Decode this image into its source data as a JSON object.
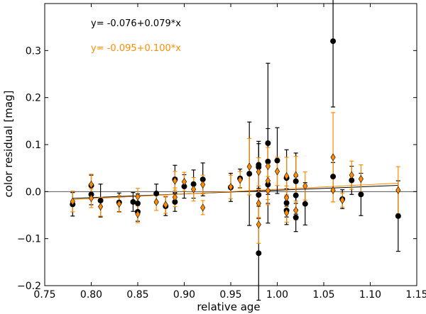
{
  "chart_data": {
    "type": "scatter",
    "xlabel": "relative age",
    "ylabel": "color residual [mag]",
    "xlim": [
      0.75,
      1.15
    ],
    "ylim": [
      -0.2,
      0.4
    ],
    "xticks": [
      "0.75",
      "0.80",
      "0.85",
      "0.90",
      "0.95",
      "1.00",
      "1.05",
      "1.10",
      "1.15"
    ],
    "yticks": [
      "−0.2",
      "−0.1",
      "0.0",
      "0.1",
      "0.2",
      "0.3"
    ],
    "ytick_values": [
      -0.2,
      -0.1,
      0.0,
      0.1,
      0.2,
      0.3
    ],
    "xtick_values": [
      0.75,
      0.8,
      0.85,
      0.9,
      0.95,
      1.0,
      1.05,
      1.1,
      1.15
    ],
    "grid": false,
    "reference_line_y": 0.0,
    "annotations": [
      {
        "text": "y= -0.076+0.079*x",
        "color": "#000000"
      },
      {
        "text": "y= -0.095+0.100*x",
        "color": "#ff8c00"
      }
    ],
    "series": [
      {
        "marker": "circle",
        "color": "#000000",
        "fit": {
          "intercept": -0.076,
          "slope": 0.079
        },
        "points": [
          {
            "x": 0.78,
            "y": -0.027,
            "err": 0.025
          },
          {
            "x": 0.8,
            "y": -0.006,
            "err": 0.022
          },
          {
            "x": 0.8,
            "y": 0.013,
            "err": 0.022
          },
          {
            "x": 0.81,
            "y": -0.019,
            "err": 0.035
          },
          {
            "x": 0.83,
            "y": -0.023,
            "err": 0.02
          },
          {
            "x": 0.845,
            "y": -0.022,
            "err": 0.02
          },
          {
            "x": 0.85,
            "y": -0.025,
            "err": 0.02
          },
          {
            "x": 0.85,
            "y": -0.043,
            "err": 0.02
          },
          {
            "x": 0.87,
            "y": -0.004,
            "err": 0.02
          },
          {
            "x": 0.88,
            "y": -0.031,
            "err": 0.02
          },
          {
            "x": 0.89,
            "y": 0.026,
            "err": 0.03
          },
          {
            "x": 0.89,
            "y": -0.022,
            "err": 0.02
          },
          {
            "x": 0.9,
            "y": 0.011,
            "err": 0.025
          },
          {
            "x": 0.91,
            "y": 0.016,
            "err": 0.03
          },
          {
            "x": 0.92,
            "y": 0.026,
            "err": 0.035
          },
          {
            "x": 0.95,
            "y": 0.009,
            "err": 0.03
          },
          {
            "x": 0.96,
            "y": 0.028,
            "err": 0.02
          },
          {
            "x": 0.97,
            "y": 0.038,
            "err": 0.11
          },
          {
            "x": 0.98,
            "y": 0.057,
            "err": 0.05
          },
          {
            "x": 0.98,
            "y": 0.052,
            "err": 0.05
          },
          {
            "x": 0.98,
            "y": -0.007,
            "err": 0.05
          },
          {
            "x": 0.98,
            "y": -0.131,
            "err": 0.1
          },
          {
            "x": 0.99,
            "y": 0.103,
            "err": 0.17
          },
          {
            "x": 0.99,
            "y": 0.064,
            "err": 0.07
          },
          {
            "x": 0.99,
            "y": 0.015,
            "err": 0.04
          },
          {
            "x": 1.0,
            "y": 0.066,
            "err": 0.07
          },
          {
            "x": 1.01,
            "y": 0.029,
            "err": 0.06
          },
          {
            "x": 1.01,
            "y": -0.024,
            "err": 0.03
          },
          {
            "x": 1.01,
            "y": -0.04,
            "err": 0.03
          },
          {
            "x": 1.02,
            "y": 0.022,
            "err": 0.06
          },
          {
            "x": 1.02,
            "y": -0.008,
            "err": 0.04
          },
          {
            "x": 1.02,
            "y": -0.055,
            "err": 0.03
          },
          {
            "x": 1.03,
            "y": -0.026,
            "err": 0.045
          },
          {
            "x": 1.06,
            "y": 0.32,
            "err": 0.14
          },
          {
            "x": 1.06,
            "y": 0.032,
            "err": 0.03
          },
          {
            "x": 1.07,
            "y": -0.016,
            "err": 0.02
          },
          {
            "x": 1.08,
            "y": 0.024,
            "err": 0.03
          },
          {
            "x": 1.09,
            "y": -0.006,
            "err": 0.045
          },
          {
            "x": 1.13,
            "y": -0.052,
            "err": 0.075
          }
        ]
      },
      {
        "marker": "diamond",
        "color": "#ff8c00",
        "fit": {
          "intercept": -0.095,
          "slope": 0.1
        },
        "points": [
          {
            "x": 0.78,
            "y": -0.021,
            "err": 0.022
          },
          {
            "x": 0.8,
            "y": 0.015,
            "err": 0.022
          },
          {
            "x": 0.8,
            "y": -0.014,
            "err": 0.02
          },
          {
            "x": 0.81,
            "y": -0.032,
            "err": 0.02
          },
          {
            "x": 0.83,
            "y": -0.026,
            "err": 0.018
          },
          {
            "x": 0.85,
            "y": -0.011,
            "err": 0.018
          },
          {
            "x": 0.85,
            "y": -0.048,
            "err": 0.018
          },
          {
            "x": 0.87,
            "y": -0.022,
            "err": 0.018
          },
          {
            "x": 0.88,
            "y": -0.028,
            "err": 0.018
          },
          {
            "x": 0.89,
            "y": 0.023,
            "err": 0.02
          },
          {
            "x": 0.89,
            "y": -0.012,
            "err": 0.02
          },
          {
            "x": 0.9,
            "y": 0.021,
            "err": 0.02
          },
          {
            "x": 0.91,
            "y": 0.005,
            "err": 0.025
          },
          {
            "x": 0.92,
            "y": -0.034,
            "err": 0.015
          },
          {
            "x": 0.92,
            "y": 0.015,
            "err": 0.02
          },
          {
            "x": 0.95,
            "y": 0.01,
            "err": 0.025
          },
          {
            "x": 0.96,
            "y": 0.025,
            "err": 0.018
          },
          {
            "x": 0.97,
            "y": 0.053,
            "err": 0.06
          },
          {
            "x": 0.98,
            "y": -0.07,
            "err": 0.04
          },
          {
            "x": 0.98,
            "y": 0.042,
            "err": 0.03
          },
          {
            "x": 0.98,
            "y": -0.025,
            "err": 0.03
          },
          {
            "x": 0.99,
            "y": 0.054,
            "err": 0.04
          },
          {
            "x": 0.99,
            "y": 0.023,
            "err": 0.04
          },
          {
            "x": 0.99,
            "y": 0.002,
            "err": 0.03
          },
          {
            "x": 1.0,
            "y": 0.043,
            "err": 0.03
          },
          {
            "x": 1.01,
            "y": 0.033,
            "err": 0.04
          },
          {
            "x": 1.01,
            "y": -0.013,
            "err": 0.025
          },
          {
            "x": 1.01,
            "y": -0.045,
            "err": 0.02
          },
          {
            "x": 1.02,
            "y": 0.035,
            "err": 0.04
          },
          {
            "x": 1.02,
            "y": -0.04,
            "err": 0.02
          },
          {
            "x": 1.03,
            "y": 0.012,
            "err": 0.03
          },
          {
            "x": 1.06,
            "y": 0.073,
            "err": 0.095
          },
          {
            "x": 1.06,
            "y": 0.003,
            "err": 0.025
          },
          {
            "x": 1.07,
            "y": -0.018,
            "err": 0.015
          },
          {
            "x": 1.08,
            "y": 0.035,
            "err": 0.03
          },
          {
            "x": 1.09,
            "y": 0.027,
            "err": 0.03
          },
          {
            "x": 1.13,
            "y": 0.003,
            "err": 0.05
          }
        ]
      }
    ]
  }
}
